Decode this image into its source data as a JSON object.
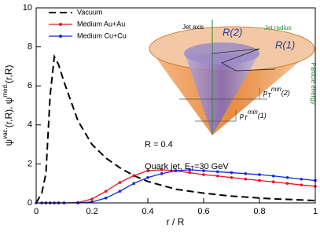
{
  "chart_data": {
    "type": "line",
    "xlabel": "r / R",
    "ylabel_parts": [
      "ψ",
      "vac.",
      "(r,R), ψ",
      "med.",
      "(r,R)"
    ],
    "x": [
      0,
      0.02,
      0.035,
      0.05,
      0.065,
      0.08,
      0.1,
      0.15,
      0.2,
      0.25,
      0.3,
      0.35,
      0.4,
      0.45,
      0.5,
      0.55,
      0.6,
      0.65,
      0.7,
      0.75,
      0.8,
      0.85,
      0.9,
      0.95,
      1.0
    ],
    "series": [
      {
        "name": "Vacuum",
        "color": "#000000",
        "dash": true,
        "markers": false,
        "values": [
          0,
          0.5,
          1.5,
          5.5,
          7.5,
          7.1,
          6.2,
          4.2,
          3.0,
          2.3,
          1.8,
          1.4,
          1.1,
          0.9,
          0.7,
          0.6,
          0.5,
          0.42,
          0.35,
          0.3,
          0.25,
          0.21,
          0.18,
          0.15,
          0.12
        ]
      },
      {
        "name": "Medium Au+Au",
        "color": "#e8141e",
        "dash": false,
        "markers": true,
        "values": [
          0,
          0,
          0,
          0,
          0,
          0,
          0,
          0.02,
          0.2,
          0.6,
          1.05,
          1.4,
          1.65,
          1.7,
          1.65,
          1.55,
          1.45,
          1.38,
          1.3,
          1.22,
          1.15,
          1.08,
          1.0,
          0.92,
          0.85
        ]
      },
      {
        "name": "Medium Cu+Cu",
        "color": "#1428e0",
        "dash": false,
        "markers": true,
        "values": [
          0,
          0,
          0,
          0,
          0,
          0,
          0,
          0,
          0.05,
          0.25,
          0.6,
          1.0,
          1.3,
          1.5,
          1.65,
          1.7,
          1.65,
          1.6,
          1.55,
          1.5,
          1.45,
          1.38,
          1.3,
          1.22,
          1.15
        ]
      }
    ],
    "xlim": [
      0,
      1
    ],
    "xticks": [
      0,
      0.2,
      0.4,
      0.6,
      0.8,
      1
    ],
    "ylim": [
      0,
      10
    ],
    "yticks": [
      0,
      2,
      4,
      6,
      8,
      10
    ],
    "annotations": {
      "radius": "R = 0.4",
      "jet_parts": [
        "Quark jet, E",
        "T",
        "=30 GeV"
      ],
      "jet_axis": "Jet axis",
      "jet_radius": "Jet radius",
      "r2": "R(2)",
      "r1": "R(1)",
      "particle_energy": "Particle energy",
      "pt2_parts": [
        "p",
        "T",
        "min",
        "(2)"
      ],
      "pt1_parts": [
        "p",
        "T",
        "min",
        "(1)"
      ]
    }
  }
}
